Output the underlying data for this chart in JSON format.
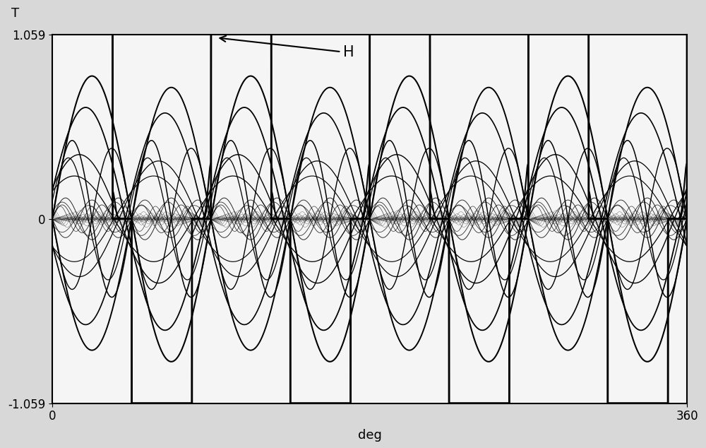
{
  "title_y": "T",
  "xlabel": "deg",
  "ylim": [
    -1.059,
    1.059
  ],
  "xlim": [
    0,
    360
  ],
  "yticks": [
    -1.059,
    0,
    1.059
  ],
  "xticks": [
    0,
    360
  ],
  "annotation_text": "H",
  "bg_color": "#d8d8d8",
  "plot_bg": "#f5f5f5",
  "line_color": "#000000",
  "num_periods": 4,
  "pwm_amplitude": 1.059,
  "sine_amplitude": 0.82,
  "ripple_amplitude": 0.08
}
